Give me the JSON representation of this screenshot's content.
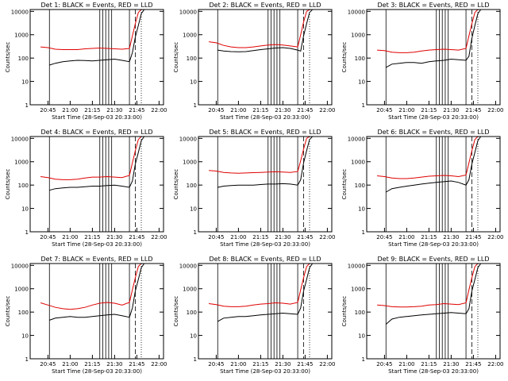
{
  "colors": {
    "events": "#000000",
    "lld": "#e00000",
    "background": "#ffffff"
  },
  "chart_data": [
    {
      "type": "line",
      "panel": 1,
      "title": "Det 1: BLACK = Events, RED = LLD",
      "ylabel": "Counts/sec",
      "xlabel": "Start Time (28-Sep-03 20:33:00)",
      "x_ticks": [
        "20:45",
        "21:00",
        "21:15",
        "21:30",
        "21:45",
        "22:00"
      ],
      "y_ticks": [
        "1",
        "10",
        "100",
        "1000",
        "10000"
      ],
      "ylim": [
        1,
        12000
      ],
      "y_scale": "log",
      "series": [
        {
          "name": "Events",
          "x_min": [
            46,
            50,
            55,
            60,
            65,
            70,
            75,
            80,
            85,
            90,
            95,
            100,
            102,
            104,
            106,
            108,
            110,
            112
          ],
          "values": [
            50,
            60,
            70,
            75,
            80,
            78,
            75,
            80,
            85,
            90,
            80,
            70,
            170,
            800,
            2500,
            8000,
            12000,
            12000
          ]
        },
        {
          "name": "LLD",
          "x_min": [
            40,
            45,
            50,
            55,
            60,
            65,
            70,
            75,
            80,
            85,
            90,
            95,
            100,
            102,
            104,
            106,
            108,
            110,
            112
          ],
          "values": [
            300,
            280,
            240,
            230,
            230,
            230,
            250,
            260,
            270,
            260,
            250,
            240,
            260,
            900,
            3000,
            9000,
            12000,
            12000,
            12000
          ]
        }
      ],
      "solid_markers_min": [
        46,
        80,
        82,
        84,
        86,
        88,
        100
      ],
      "dashed_markers_min": [
        104
      ],
      "dotted_markers_min": [
        108
      ]
    },
    {
      "type": "line",
      "panel": 2,
      "title": "Det 2: BLACK = Events, RED = LLD",
      "ylabel": "Counts/sec",
      "xlabel": "Start Time (28-Sep-03 20:33:00)",
      "x_ticks": [
        "20:45",
        "21:00",
        "21:15",
        "21:30",
        "21:45",
        "22:00"
      ],
      "y_ticks": [
        "1",
        "10",
        "100",
        "1000",
        "10000"
      ],
      "ylim": [
        1,
        12000
      ],
      "y_scale": "log",
      "series": [
        {
          "name": "Events",
          "x_min": [
            46,
            50,
            55,
            60,
            65,
            70,
            75,
            80,
            85,
            90,
            95,
            100,
            102,
            104,
            106,
            108,
            110,
            112
          ],
          "values": [
            220,
            200,
            190,
            185,
            190,
            210,
            230,
            250,
            270,
            280,
            260,
            220,
            200,
            900,
            3000,
            9000,
            12000,
            12000
          ]
        },
        {
          "name": "LLD",
          "x_min": [
            40,
            45,
            50,
            55,
            60,
            65,
            70,
            75,
            80,
            85,
            90,
            95,
            100,
            102,
            104,
            106,
            108,
            110,
            112
          ],
          "values": [
            500,
            450,
            350,
            300,
            280,
            280,
            300,
            330,
            360,
            380,
            360,
            330,
            300,
            1000,
            3500,
            10000,
            12000,
            12000,
            12000
          ]
        }
      ],
      "solid_markers_min": [
        46,
        80,
        82,
        84,
        86,
        88,
        100
      ],
      "dashed_markers_min": [
        104
      ],
      "dotted_markers_min": [
        108
      ]
    },
    {
      "type": "line",
      "panel": 3,
      "title": "Det 3: BLACK = Events, RED = LLD",
      "ylabel": "Counts/sec",
      "xlabel": "Start Time (28-Sep-03 20:33:00)",
      "x_ticks": [
        "20:45",
        "21:00",
        "21:15",
        "21:30",
        "21:45",
        "22:00"
      ],
      "y_ticks": [
        "1",
        "10",
        "100",
        "1000",
        "10000"
      ],
      "ylim": [
        1,
        12000
      ],
      "y_scale": "log",
      "series": [
        {
          "name": "Events",
          "x_min": [
            46,
            50,
            55,
            60,
            65,
            70,
            75,
            80,
            85,
            90,
            95,
            100,
            102,
            104,
            106,
            108,
            110,
            112
          ],
          "values": [
            40,
            55,
            60,
            65,
            65,
            60,
            70,
            75,
            80,
            90,
            85,
            80,
            120,
            700,
            2500,
            8000,
            12000,
            12000
          ]
        },
        {
          "name": "LLD",
          "x_min": [
            40,
            45,
            50,
            55,
            60,
            65,
            70,
            75,
            80,
            85,
            90,
            95,
            100,
            102,
            104,
            106,
            108,
            110,
            112
          ],
          "values": [
            220,
            210,
            180,
            170,
            170,
            180,
            200,
            220,
            230,
            240,
            230,
            220,
            260,
            900,
            3000,
            9000,
            12000,
            12000,
            12000
          ]
        }
      ],
      "solid_markers_min": [
        46,
        80,
        82,
        84,
        86,
        88,
        100
      ],
      "dashed_markers_min": [
        104
      ],
      "dotted_markers_min": [
        108
      ]
    },
    {
      "type": "line",
      "panel": 4,
      "title": "Det 4: BLACK = Events, RED = LLD",
      "ylabel": "Counts/sec",
      "xlabel": "Start Time (28-Sep-03 20:33:00)",
      "x_ticks": [
        "20:45",
        "21:00",
        "21:15",
        "21:30",
        "21:45",
        "22:00"
      ],
      "y_ticks": [
        "1",
        "10",
        "100",
        "1000",
        "10000"
      ],
      "ylim": [
        1,
        12000
      ],
      "y_scale": "log",
      "series": [
        {
          "name": "Events",
          "x_min": [
            46,
            50,
            55,
            60,
            65,
            70,
            75,
            80,
            85,
            90,
            95,
            100,
            102,
            104,
            106,
            108,
            110,
            112
          ],
          "values": [
            60,
            70,
            75,
            80,
            80,
            85,
            90,
            90,
            95,
            100,
            90,
            80,
            150,
            800,
            2500,
            8000,
            12000,
            12000
          ]
        },
        {
          "name": "LLD",
          "x_min": [
            40,
            45,
            50,
            55,
            60,
            65,
            70,
            75,
            80,
            85,
            90,
            95,
            100,
            102,
            104,
            106,
            108,
            110,
            112
          ],
          "values": [
            230,
            210,
            180,
            170,
            170,
            180,
            200,
            220,
            220,
            230,
            220,
            210,
            260,
            900,
            3000,
            9000,
            12000,
            12000,
            12000
          ]
        }
      ],
      "solid_markers_min": [
        46,
        80,
        82,
        84,
        86,
        88,
        100
      ],
      "dashed_markers_min": [
        104
      ],
      "dotted_markers_min": [
        108
      ]
    },
    {
      "type": "line",
      "panel": 5,
      "title": "Det 5: BLACK = Events, RED = LLD",
      "ylabel": "Counts/sec",
      "xlabel": "Start Time (28-Sep-03 20:33:00)",
      "x_ticks": [
        "20:45",
        "21:00",
        "21:15",
        "21:30",
        "21:45",
        "22:00"
      ],
      "y_ticks": [
        "1",
        "10",
        "100",
        "1000",
        "10000"
      ],
      "ylim": [
        1,
        12000
      ],
      "y_scale": "log",
      "series": [
        {
          "name": "Events",
          "x_min": [
            46,
            50,
            55,
            60,
            65,
            70,
            75,
            80,
            85,
            90,
            95,
            100,
            102,
            104,
            106,
            108,
            110,
            112
          ],
          "values": [
            80,
            90,
            95,
            100,
            100,
            100,
            105,
            110,
            110,
            115,
            110,
            100,
            170,
            900,
            3000,
            9000,
            12000,
            12000
          ]
        },
        {
          "name": "LLD",
          "x_min": [
            40,
            45,
            50,
            55,
            60,
            65,
            70,
            75,
            80,
            85,
            90,
            95,
            100,
            102,
            104,
            106,
            108,
            110,
            112
          ],
          "values": [
            420,
            400,
            350,
            330,
            320,
            330,
            340,
            350,
            360,
            370,
            360,
            350,
            380,
            1100,
            3500,
            10000,
            12000,
            12000,
            12000
          ]
        }
      ],
      "solid_markers_min": [
        46,
        80,
        82,
        84,
        86,
        88,
        100
      ],
      "dashed_markers_min": [
        104
      ],
      "dotted_markers_min": [
        108
      ]
    },
    {
      "type": "line",
      "panel": 6,
      "title": "Det 6: BLACK = Events, RED = LLD",
      "ylabel": "Counts/sec",
      "xlabel": "Start Time (28-Sep-03 20:33:00)",
      "x_ticks": [
        "20:45",
        "21:00",
        "21:15",
        "21:30",
        "21:45",
        "22:00"
      ],
      "y_ticks": [
        "1",
        "10",
        "100",
        "1000",
        "10000"
      ],
      "ylim": [
        1,
        12000
      ],
      "y_scale": "log",
      "series": [
        {
          "name": "Events",
          "x_min": [
            46,
            50,
            55,
            60,
            65,
            70,
            75,
            80,
            85,
            90,
            95,
            100,
            102,
            104,
            106,
            108,
            110,
            112
          ],
          "values": [
            50,
            70,
            80,
            90,
            100,
            110,
            120,
            130,
            140,
            150,
            130,
            100,
            170,
            800,
            2500,
            8000,
            12000,
            12000
          ]
        },
        {
          "name": "LLD",
          "x_min": [
            40,
            45,
            50,
            55,
            60,
            65,
            70,
            75,
            80,
            85,
            90,
            95,
            100,
            102,
            104,
            106,
            108,
            110,
            112
          ],
          "values": [
            250,
            230,
            200,
            190,
            190,
            200,
            220,
            240,
            250,
            260,
            250,
            230,
            270,
            900,
            3000,
            9000,
            12000,
            12000,
            12000
          ]
        }
      ],
      "solid_markers_min": [
        46,
        80,
        82,
        84,
        86,
        88,
        100
      ],
      "dashed_markers_min": [
        104
      ],
      "dotted_markers_min": [
        108
      ]
    },
    {
      "type": "line",
      "panel": 7,
      "title": "Det 7: BLACK = Events, RED = LLD",
      "ylabel": "Counts/sec",
      "xlabel": "Start Time (28-Sep-03 20:33:00)",
      "x_ticks": [
        "20:45",
        "21:00",
        "21:15",
        "21:30",
        "21:45",
        "22:00"
      ],
      "y_ticks": [
        "1",
        "10",
        "100",
        "1000",
        "10000"
      ],
      "ylim": [
        1,
        12000
      ],
      "y_scale": "log",
      "series": [
        {
          "name": "Events",
          "x_min": [
            46,
            50,
            55,
            60,
            65,
            70,
            75,
            80,
            85,
            90,
            95,
            100,
            102,
            104,
            106,
            108,
            110,
            112
          ],
          "values": [
            45,
            55,
            60,
            65,
            60,
            60,
            65,
            70,
            75,
            80,
            70,
            60,
            150,
            800,
            2500,
            8000,
            12000,
            12000
          ]
        },
        {
          "name": "LLD",
          "x_min": [
            40,
            45,
            50,
            55,
            60,
            65,
            70,
            75,
            80,
            85,
            90,
            95,
            100,
            102,
            104,
            106,
            108,
            110,
            112
          ],
          "values": [
            250,
            200,
            160,
            140,
            130,
            140,
            160,
            200,
            240,
            260,
            240,
            200,
            260,
            900,
            3000,
            9000,
            12000,
            12000,
            12000
          ]
        }
      ],
      "solid_markers_min": [
        46,
        80,
        82,
        84,
        86,
        88,
        100
      ],
      "dashed_markers_min": [
        104
      ],
      "dotted_markers_min": [
        108
      ]
    },
    {
      "type": "line",
      "panel": 8,
      "title": "Det 8: BLACK = Events, RED = LLD",
      "ylabel": "Counts/sec",
      "xlabel": "Start Time (28-Sep-03 20:33:00)",
      "x_ticks": [
        "20:45",
        "21:00",
        "21:15",
        "21:30",
        "21:45",
        "22:00"
      ],
      "y_ticks": [
        "1",
        "10",
        "100",
        "1000",
        "10000"
      ],
      "ylim": [
        1,
        12000
      ],
      "y_scale": "log",
      "series": [
        {
          "name": "Events",
          "x_min": [
            46,
            50,
            55,
            60,
            65,
            70,
            75,
            80,
            85,
            90,
            95,
            100,
            102,
            104,
            106,
            108,
            110,
            112
          ],
          "values": [
            40,
            55,
            60,
            65,
            65,
            70,
            75,
            80,
            85,
            90,
            85,
            80,
            150,
            800,
            2500,
            8000,
            12000,
            12000
          ]
        },
        {
          "name": "LLD",
          "x_min": [
            40,
            45,
            50,
            55,
            60,
            65,
            70,
            75,
            80,
            85,
            90,
            95,
            100,
            102,
            104,
            106,
            108,
            110,
            112
          ],
          "values": [
            230,
            210,
            180,
            170,
            170,
            180,
            200,
            220,
            230,
            250,
            240,
            220,
            260,
            900,
            3000,
            9000,
            12000,
            12000,
            12000
          ]
        }
      ],
      "solid_markers_min": [
        46,
        80,
        82,
        84,
        86,
        88,
        100
      ],
      "dashed_markers_min": [
        104
      ],
      "dotted_markers_min": [
        108
      ]
    },
    {
      "type": "line",
      "panel": 9,
      "title": "Det 9: BLACK = Events, RED = LLD",
      "ylabel": "Counts/sec",
      "xlabel": "Start Time (28-Sep-03 20:33:00)",
      "x_ticks": [
        "20:45",
        "21:00",
        "21:15",
        "21:30",
        "21:45",
        "22:00"
      ],
      "y_ticks": [
        "1",
        "10",
        "100",
        "1000",
        "10000"
      ],
      "ylim": [
        1,
        12000
      ],
      "y_scale": "log",
      "series": [
        {
          "name": "Events",
          "x_min": [
            46,
            50,
            55,
            60,
            65,
            70,
            75,
            80,
            85,
            90,
            95,
            100,
            102,
            104,
            106,
            108,
            110,
            112
          ],
          "values": [
            30,
            50,
            60,
            65,
            70,
            75,
            80,
            85,
            90,
            95,
            90,
            85,
            140,
            800,
            2500,
            8000,
            12000,
            12000
          ]
        },
        {
          "name": "LLD",
          "x_min": [
            40,
            45,
            50,
            55,
            60,
            65,
            70,
            75,
            80,
            85,
            90,
            95,
            100,
            102,
            104,
            106,
            108,
            110,
            112
          ],
          "values": [
            200,
            190,
            170,
            165,
            165,
            170,
            180,
            200,
            210,
            230,
            220,
            210,
            250,
            900,
            3000,
            9000,
            12000,
            12000,
            12000
          ]
        }
      ],
      "solid_markers_min": [
        46,
        80,
        82,
        84,
        86,
        88,
        100
      ],
      "dashed_markers_min": [
        104
      ],
      "dotted_markers_min": [
        108
      ]
    }
  ]
}
